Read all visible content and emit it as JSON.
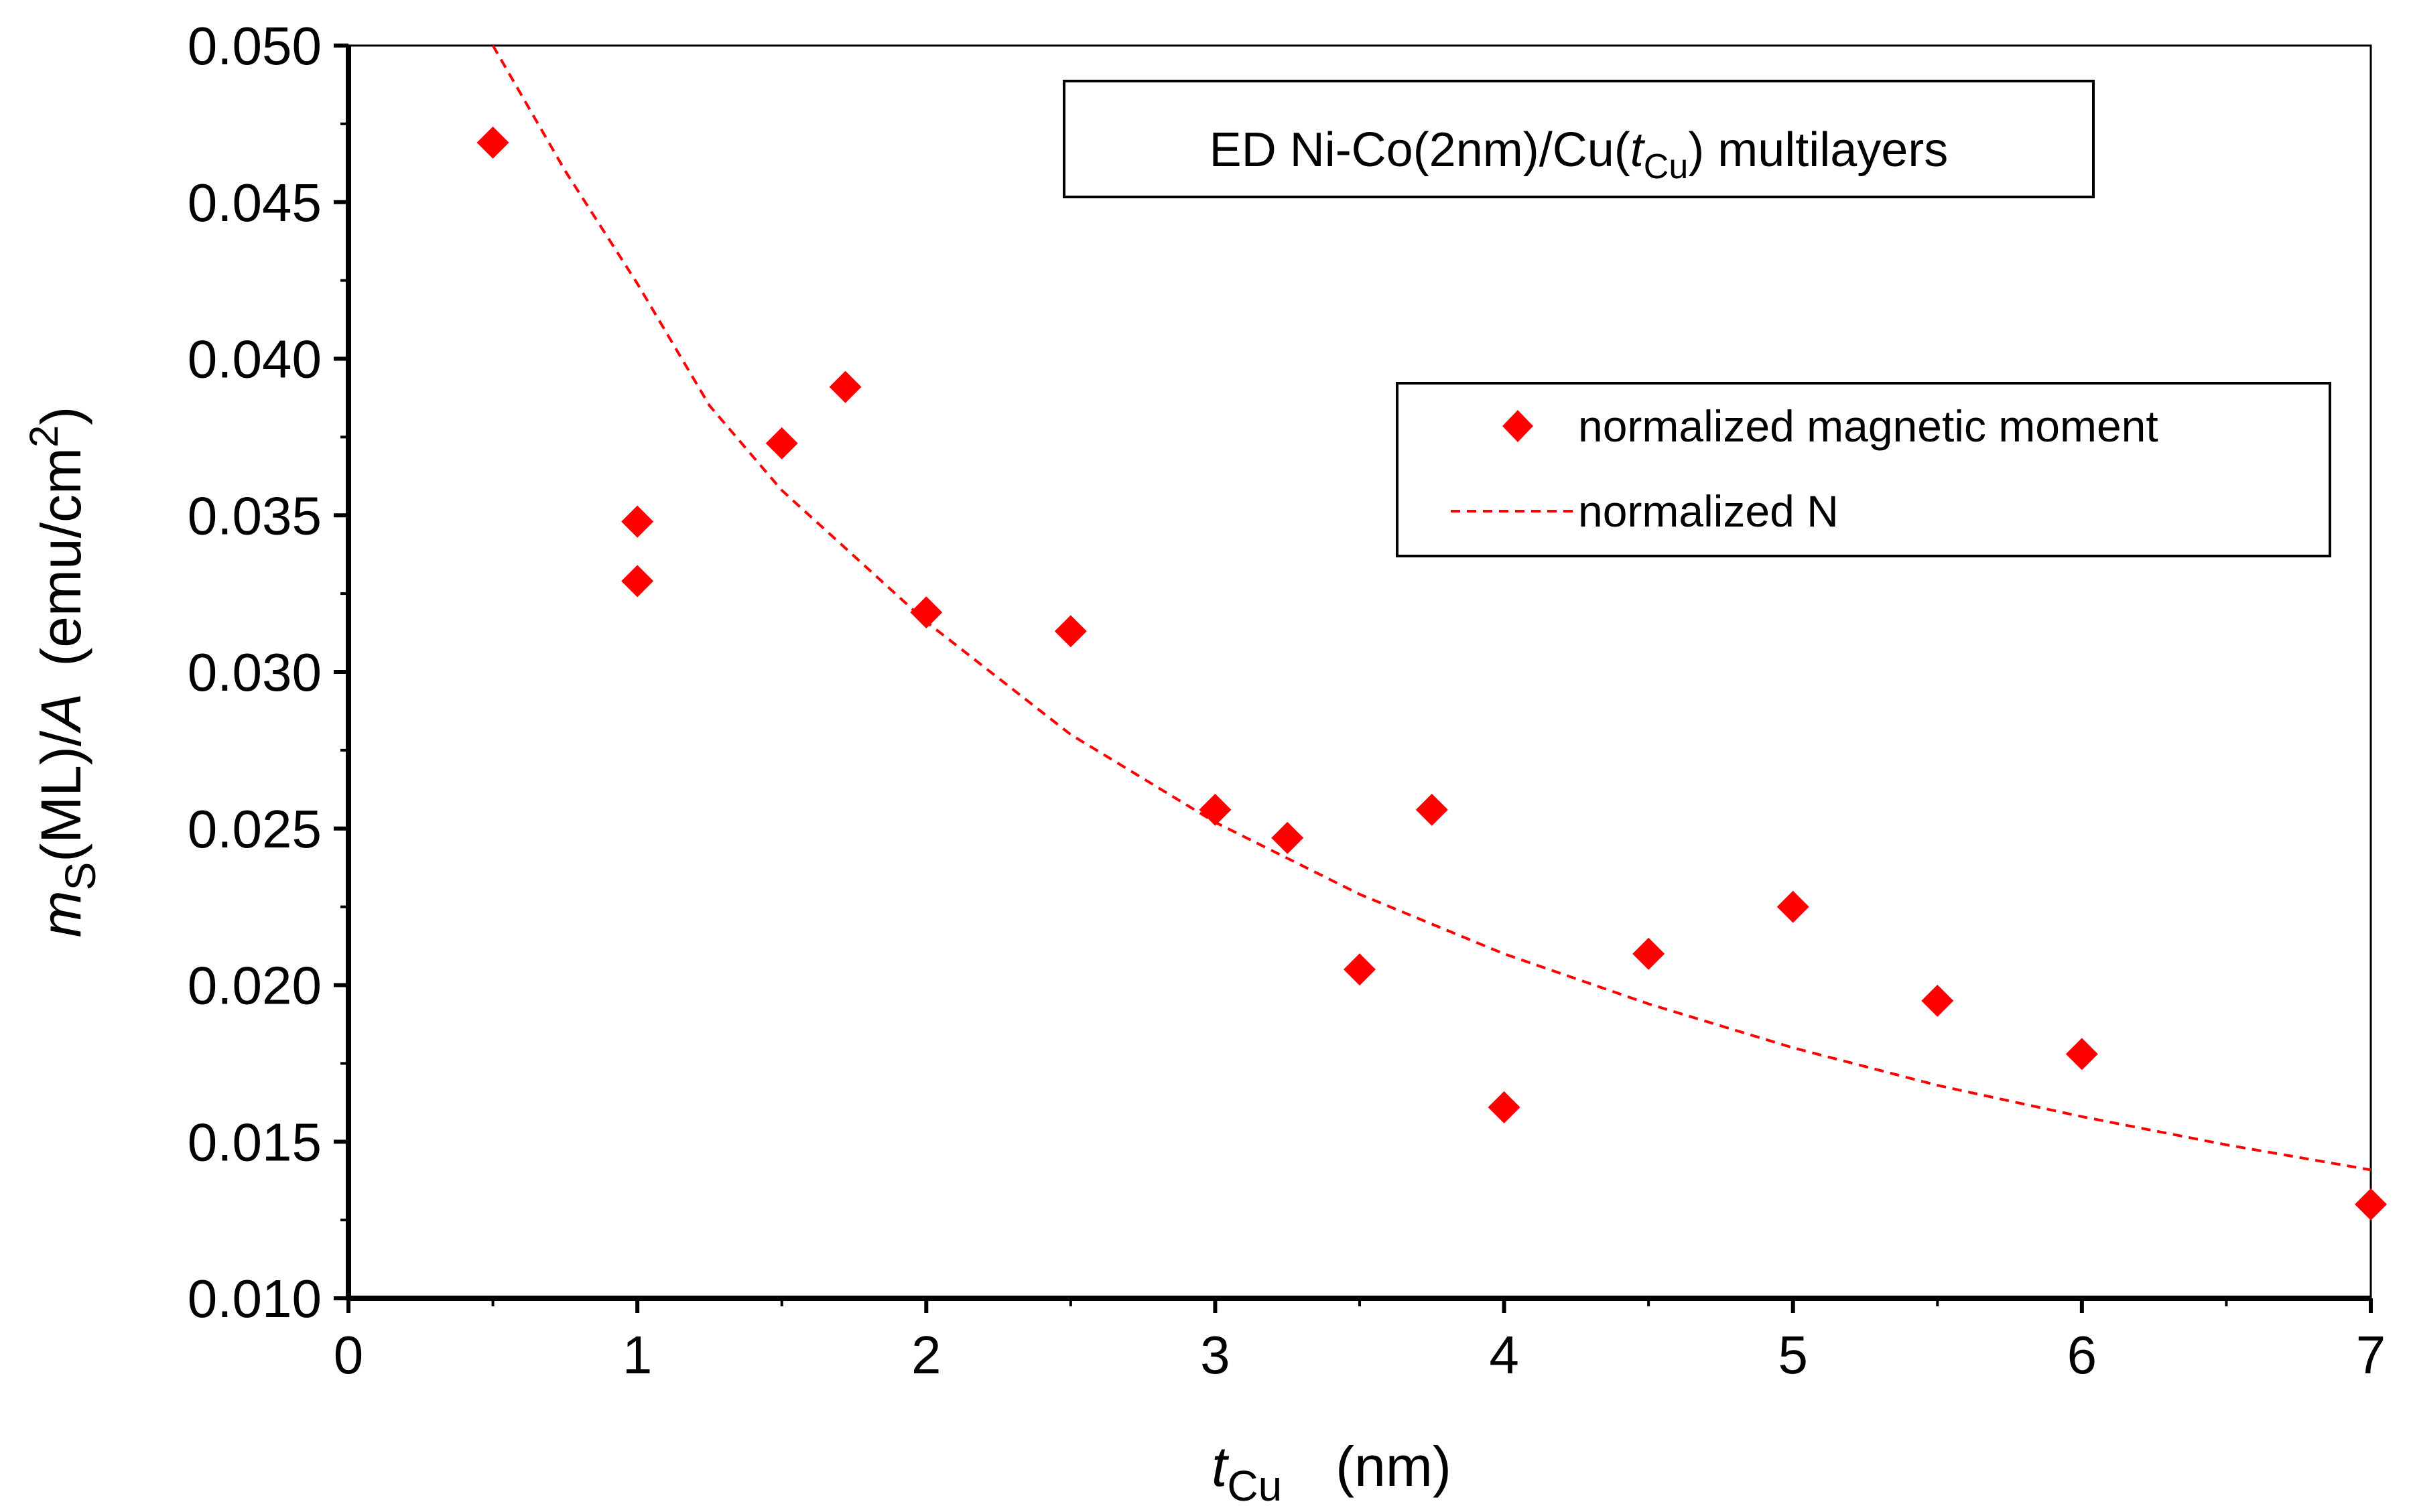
{
  "chart_data": {
    "type": "scatter",
    "title_box": {
      "prefix": "ED Ni-Co(2nm)/Cu(",
      "var": "t",
      "sub": "Cu",
      "suffix": ") multilayers"
    },
    "xlabel": {
      "var": "t",
      "sub": "Cu",
      "unit": "(nm)"
    },
    "ylabel": {
      "var": "m",
      "sub": "S",
      "mid": "(ML)/",
      "var2": "A",
      "unit": "(emu/cm",
      "sup": "2",
      "close": ")"
    },
    "xlim": [
      0,
      7
    ],
    "ylim": [
      0.01,
      0.05
    ],
    "xticks": [
      "0",
      "1",
      "2",
      "3",
      "4",
      "5",
      "6",
      "7"
    ],
    "yticks": [
      "0.010",
      "0.015",
      "0.020",
      "0.025",
      "0.030",
      "0.035",
      "0.040",
      "0.045",
      "0.050"
    ],
    "series": [
      {
        "name": "normalized magnetic moment",
        "kind": "scatter",
        "marker": "diamond",
        "color": "#ff0000",
        "x": [
          0.5,
          1.0,
          1.0,
          1.5,
          1.72,
          2.0,
          2.5,
          3.0,
          3.25,
          3.5,
          3.75,
          4.0,
          4.5,
          5.0,
          5.5,
          6.0,
          7.0
        ],
        "y": [
          0.0469,
          0.0348,
          0.0329,
          0.0373,
          0.0391,
          0.0319,
          0.0313,
          0.0256,
          0.0247,
          0.0205,
          0.0256,
          0.0161,
          0.021,
          0.0225,
          0.0195,
          0.0178,
          0.013
        ]
      },
      {
        "name": "normalized N",
        "kind": "line",
        "style": "dashed",
        "color": "#ff0000",
        "x": [
          0.5,
          0.75,
          1.0,
          1.25,
          1.5,
          1.75,
          2.0,
          2.5,
          3.0,
          3.5,
          4.0,
          4.5,
          5.0,
          5.5,
          6.0,
          6.5,
          7.0
        ],
        "y": [
          0.0504,
          0.046,
          0.0424,
          0.0385,
          0.0358,
          0.0337,
          0.0316,
          0.028,
          0.0252,
          0.0229,
          0.021,
          0.0194,
          0.018,
          0.0168,
          0.0158,
          0.0149,
          0.0141
        ]
      }
    ],
    "legend": {
      "position": "upper-right",
      "items": [
        "normalized magnetic moment",
        "normalized N"
      ]
    }
  }
}
